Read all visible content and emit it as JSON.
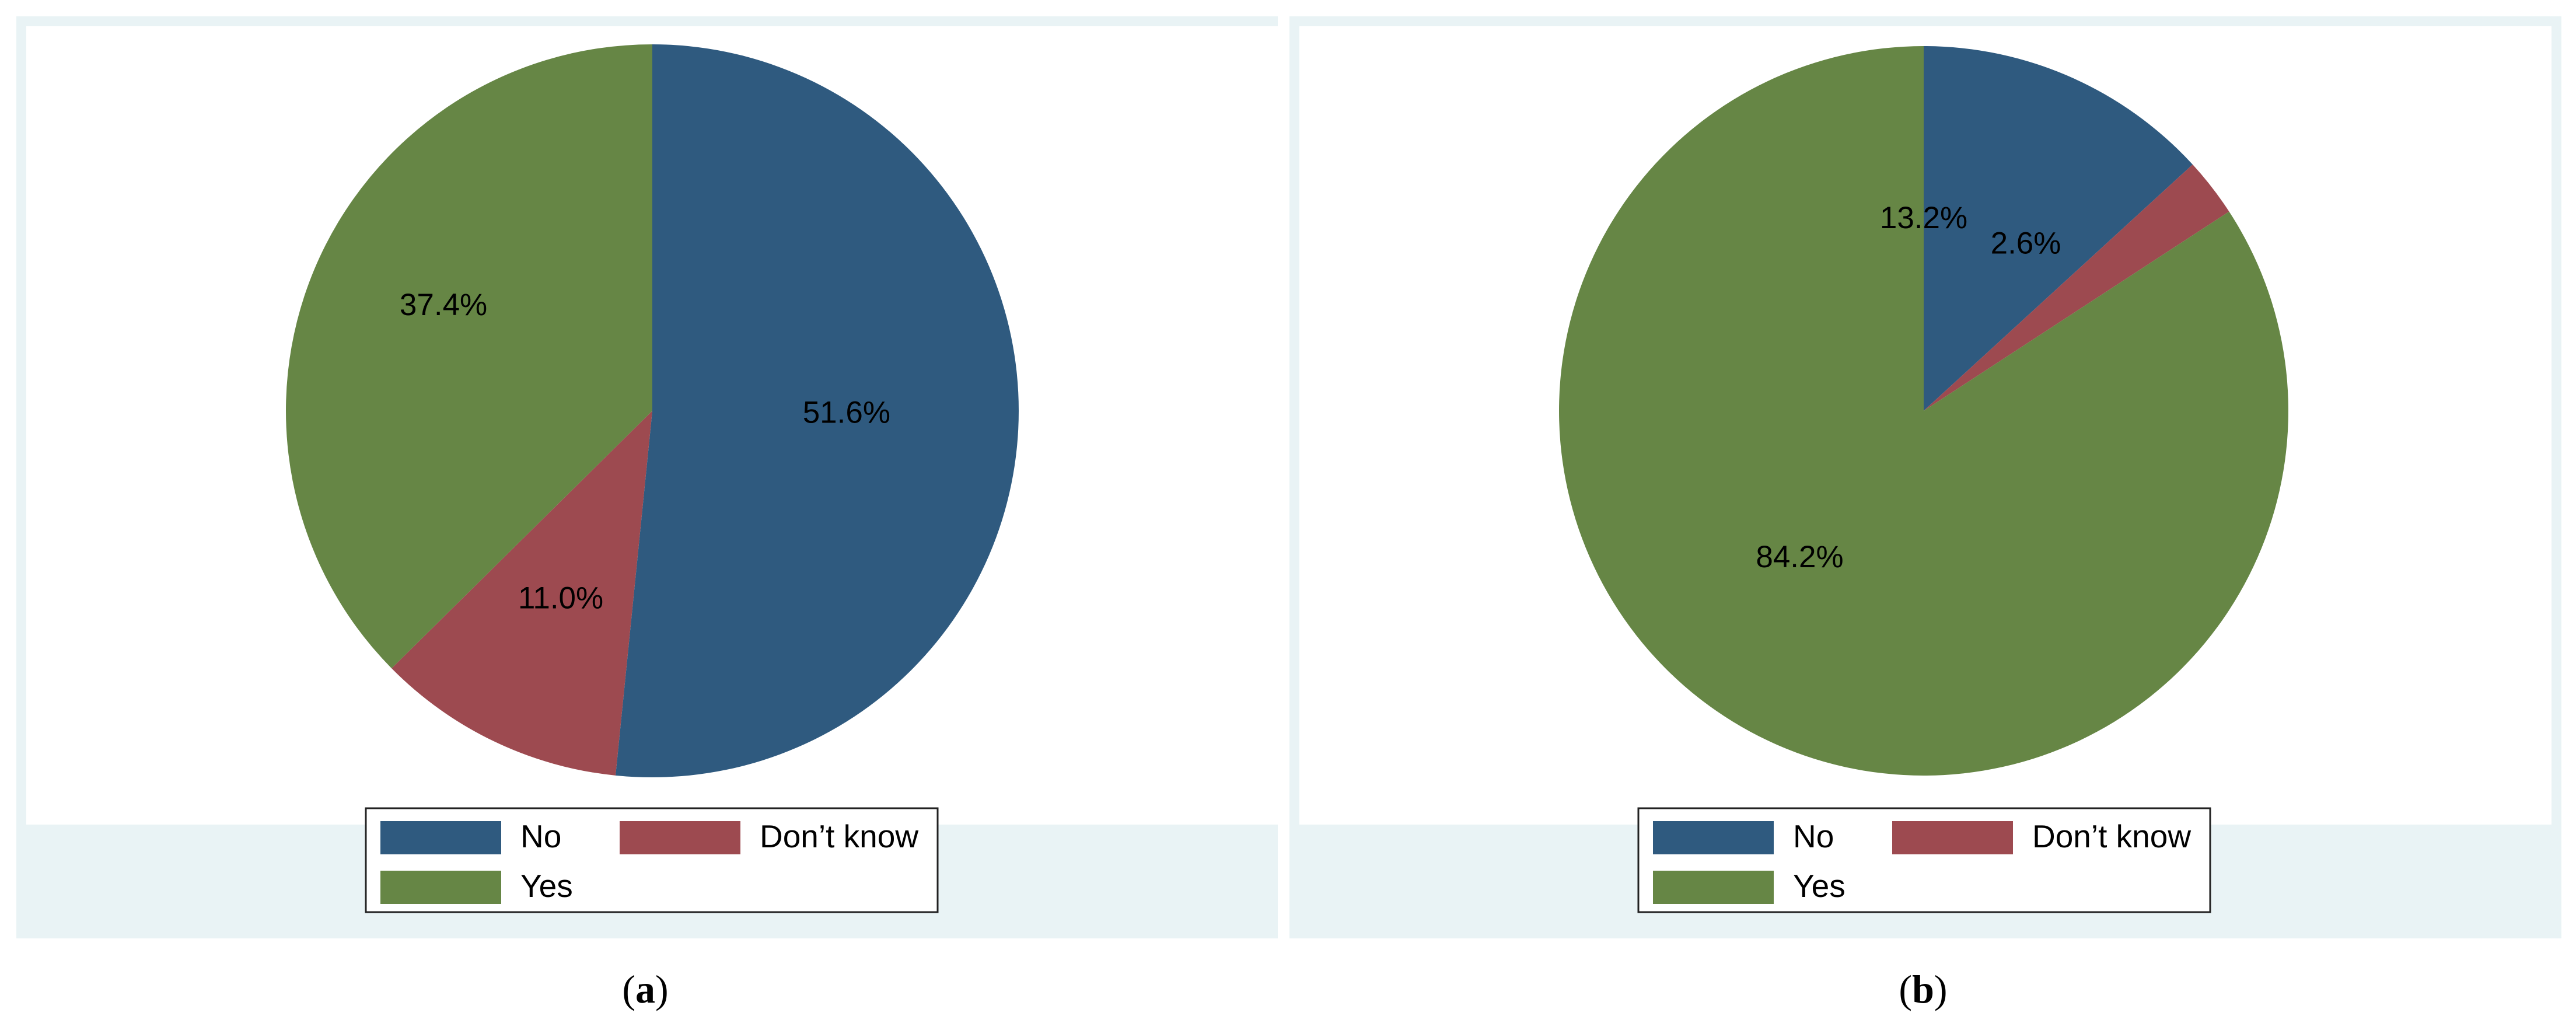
{
  "colors": {
    "outer_bg": "#e9f3f5",
    "plot_bg": "#ffffff",
    "legend_border": "#222222"
  },
  "chart_data": [
    {
      "type": "pie",
      "panel_label": "a",
      "slices": [
        {
          "label": "No",
          "value": 51.6,
          "display": "51.6%",
          "color": "#2f5a7f"
        },
        {
          "label": "Don’t know",
          "value": 11.0,
          "display": "11.0%",
          "color": "#9d4a50"
        },
        {
          "label": "Yes",
          "value": 37.4,
          "display": "37.4%",
          "color": "#668645"
        }
      ],
      "legend_position": "bottom"
    },
    {
      "type": "pie",
      "panel_label": "b",
      "slices": [
        {
          "label": "No",
          "value": 13.2,
          "display": "13.2%",
          "color": "#2f5a7f"
        },
        {
          "label": "Don’t know",
          "value": 2.6,
          "display": "2.6%",
          "color": "#9d4a50"
        },
        {
          "label": "Yes",
          "value": 84.2,
          "display": "84.2%",
          "color": "#668645"
        }
      ],
      "legend_position": "bottom"
    }
  ]
}
